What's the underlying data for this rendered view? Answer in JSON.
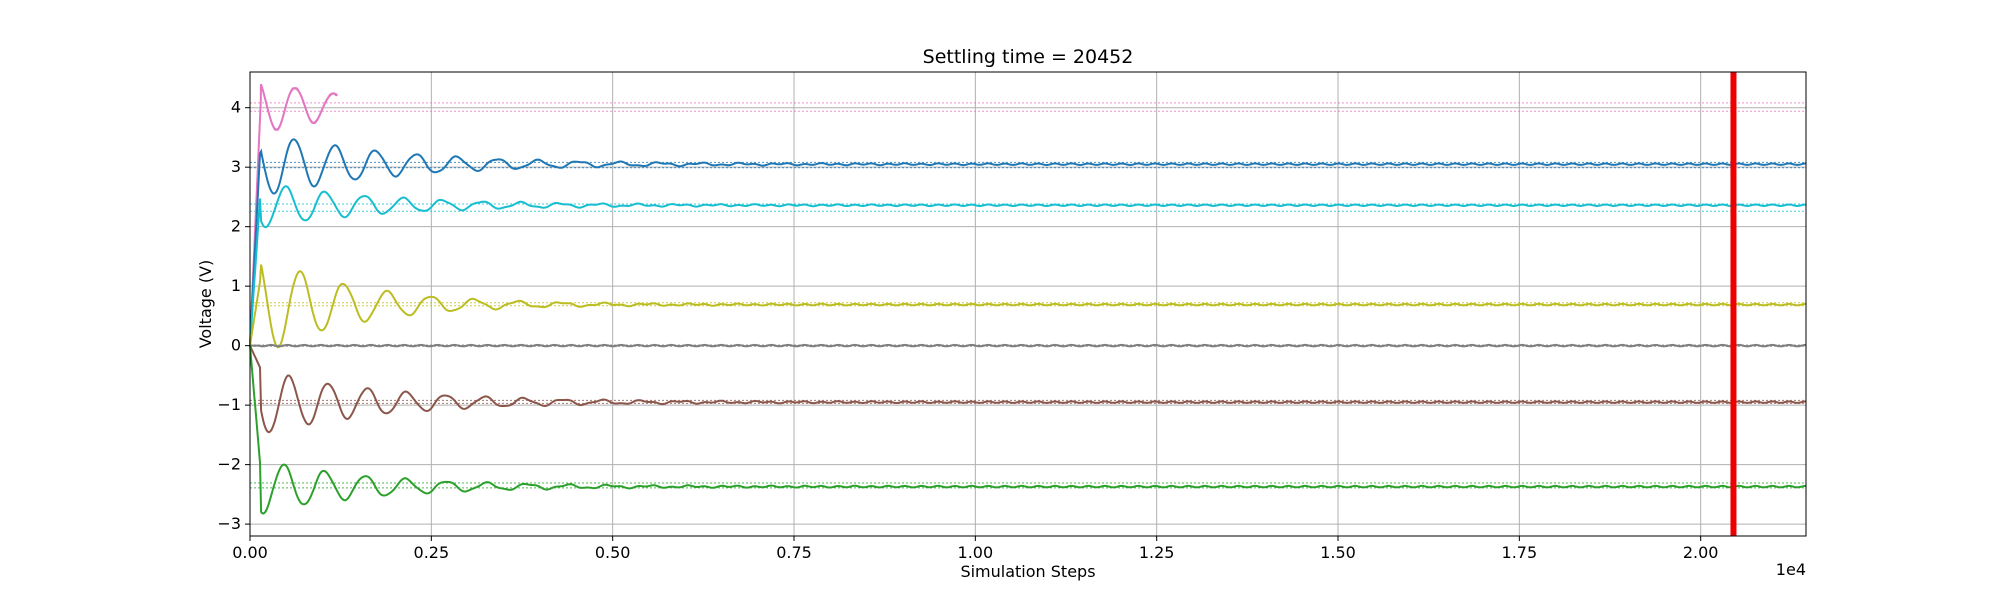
{
  "chart_data": {
    "type": "line",
    "title": "Settling time = 20452",
    "xlabel": "Simulation Steps",
    "ylabel": "Voltage (V)",
    "x_offset_label": "1e4",
    "xlim": [
      0,
      21452
    ],
    "ylim": [
      -3.2,
      4.6
    ],
    "grid": true,
    "legend": "none",
    "x_ticks": [
      0,
      2500,
      5000,
      7500,
      10000,
      12500,
      15000,
      17500,
      20000
    ],
    "x_tick_labels": [
      "0.00",
      "0.25",
      "0.50",
      "0.75",
      "1.00",
      "1.25",
      "1.50",
      "1.75",
      "2.00"
    ],
    "y_ticks": [
      -3,
      -2,
      -1,
      0,
      1,
      2,
      3,
      4
    ],
    "y_tick_labels": [
      "−3",
      "−2",
      "−1",
      "0",
      "1",
      "2",
      "3",
      "4"
    ],
    "settling_time": 20452,
    "settling_line_color": "#ee0000",
    "series": [
      {
        "color": "#e377c2",
        "final": 4.02,
        "band": [
          3.94,
          4.08
        ],
        "amp": 0.45,
        "decay": 1400,
        "period": 520,
        "phase": 0.3,
        "end": 1200
      },
      {
        "color": "#1f77b4",
        "final": 3.05,
        "band": [
          2.99,
          3.08
        ],
        "amp": 0.55,
        "decay": 1800,
        "period": 560,
        "phase": 1.0,
        "end": 21452
      },
      {
        "color": "#17becf",
        "final": 2.36,
        "band": [
          2.26,
          2.38
        ],
        "amp": 0.38,
        "decay": 1700,
        "period": 540,
        "phase": 2.1,
        "end": 21452
      },
      {
        "color": "#bcbd22",
        "final": 0.69,
        "band": [
          0.67,
          0.72
        ],
        "amp": 0.85,
        "decay": 1300,
        "period": 600,
        "phase": 0.6,
        "end": 21452
      },
      {
        "color": "#7f7f7f",
        "final": 0.0,
        "band": [
          -0.01,
          0.01
        ],
        "amp": 0.0,
        "decay": 1000,
        "period": 600,
        "phase": 0.0,
        "end": 21452
      },
      {
        "color": "#8c564b",
        "final": -0.95,
        "band": [
          -0.97,
          -0.92
        ],
        "amp": 0.55,
        "decay": 1700,
        "period": 540,
        "phase": 1.6,
        "end": 21452
      },
      {
        "color": "#2ca02c",
        "final": -2.37,
        "band": [
          -2.39,
          -2.31
        ],
        "amp": 0.45,
        "decay": 1600,
        "period": 560,
        "phase": 2.6,
        "end": 21452
      }
    ]
  }
}
